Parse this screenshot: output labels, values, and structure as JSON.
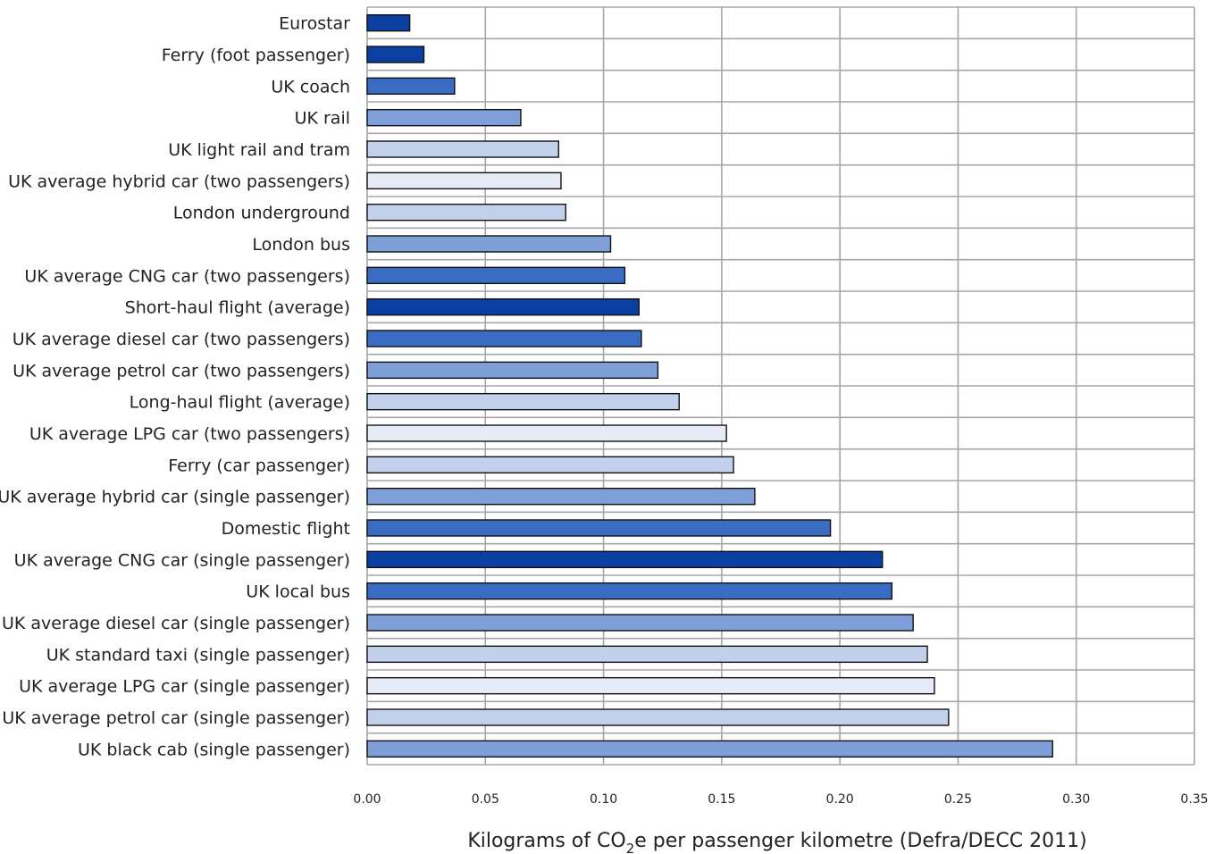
{
  "chart_data": {
    "type": "bar",
    "orientation": "horizontal",
    "title": "",
    "xlabel_parts": {
      "main": "Kilograms of CO",
      "sub": "2",
      "rest": "e per passenger kilometre (Defra/DECC 2011)"
    },
    "ylabel": "",
    "xlim": [
      0,
      0.35
    ],
    "xticks": [
      "0.00",
      "0.05",
      "0.10",
      "0.15",
      "0.20",
      "0.25",
      "0.30",
      "0.35"
    ],
    "grid": true,
    "legend": "none",
    "categories": [
      "Eurostar",
      "Ferry (foot passenger)",
      "UK coach",
      "UK rail",
      "UK light rail and tram",
      "UK average hybrid car (two passengers)",
      "London underground",
      "London bus",
      "UK average CNG car (two passengers)",
      "Short-haul flight (average)",
      "UK average diesel car (two passengers)",
      "UK average petrol car (two passengers)",
      "Long-haul flight (average)",
      "UK average LPG car (two passengers)",
      "Ferry (car passenger)",
      "UK average hybrid car (single passenger)",
      "Domestic flight",
      "UK average CNG car (single passenger)",
      "UK local bus",
      "UK average diesel car (single passenger)",
      "UK standard taxi (single passenger)",
      "UK average LPG car (single passenger)",
      "UK average petrol car (single passenger)",
      "UK black cab (single passenger)"
    ],
    "values": [
      0.018,
      0.024,
      0.037,
      0.065,
      0.081,
      0.082,
      0.084,
      0.103,
      0.109,
      0.115,
      0.116,
      0.123,
      0.132,
      0.152,
      0.155,
      0.164,
      0.196,
      0.218,
      0.222,
      0.231,
      0.237,
      0.24,
      0.246,
      0.29
    ],
    "bar_colors": [
      "#0b3fa1",
      "#0b3fa1",
      "#3a6cc4",
      "#7f9fd8",
      "#c2d0ec",
      "#e6ecf7",
      "#c2d0ec",
      "#7f9fd8",
      "#3a6cc4",
      "#0b3fa1",
      "#3a6cc4",
      "#7f9fd8",
      "#c2d0ec",
      "#e6ecf7",
      "#c2d0ec",
      "#7f9fd8",
      "#3a6cc4",
      "#0b3fa1",
      "#3a6cc4",
      "#7f9fd8",
      "#c2d0ec",
      "#e6ecf7",
      "#c2d0ec",
      "#7f9fd8"
    ]
  }
}
